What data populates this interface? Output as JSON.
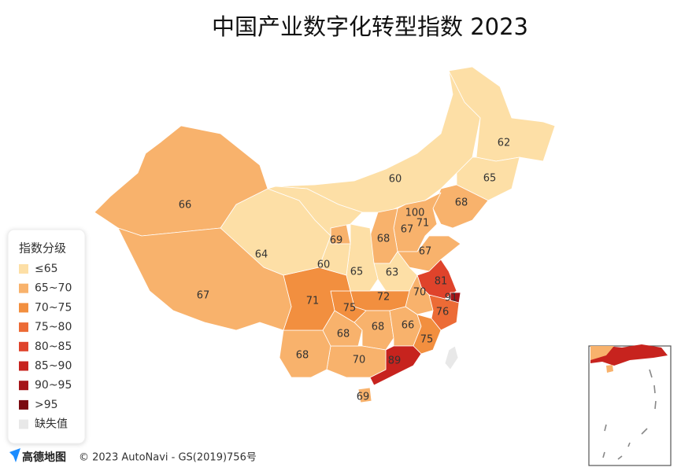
{
  "chart_data": {
    "type": "choropleth",
    "title": "中国产业数字化转型指数 2023",
    "values": [
      62,
      65,
      68,
      60,
      100,
      71,
      67,
      68,
      67,
      63,
      81,
      91,
      76,
      70,
      72,
      68,
      66,
      75,
      89,
      70,
      69,
      68,
      68,
      75,
      71,
      65,
      69,
      60,
      64,
      66,
      67,
      null
    ],
    "legend": {
      "title": "指数分级",
      "classes": [
        {
          "label": "≤65",
          "max": 65,
          "color": "#fddfa6"
        },
        {
          "label": "65~70",
          "max": 70,
          "color": "#f8b26c"
        },
        {
          "label": "70~75",
          "max": 75,
          "color": "#f28f3f"
        },
        {
          "label": "75~80",
          "max": 80,
          "color": "#ec6b36"
        },
        {
          "label": "80~85",
          "max": 85,
          "color": "#df432b"
        },
        {
          "label": "85~90",
          "max": 90,
          "color": "#c7231e"
        },
        {
          "label": "90~95",
          "max": 95,
          "color": "#a51419"
        },
        {
          "label": ">95",
          "min": 95,
          "color": "#7a0a10"
        }
      ],
      "missing": {
        "label": "缺失值",
        "color": "#e8e8e8"
      }
    },
    "attribution": {
      "logo": "高德地图",
      "text": "© 2023 AutoNavi - GS(2019)756号"
    }
  }
}
